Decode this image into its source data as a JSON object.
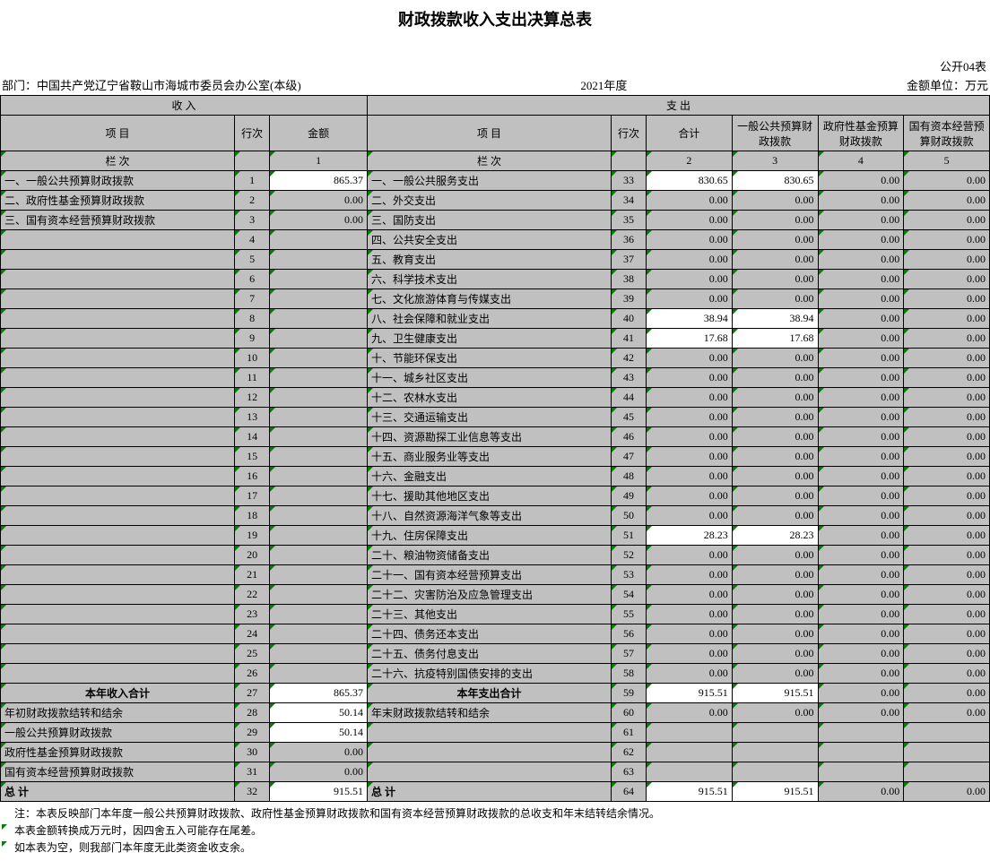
{
  "title": "财政拨款收入支出决算总表",
  "table_code": "公开04表",
  "dept_label": "部门：",
  "dept_name": "中国共产党辽宁省鞍山市海城市委员会办公室(本级)",
  "year": "2021年度",
  "unit": "金额单位：万元",
  "hdr": {
    "income": "收        入",
    "expense": "支    出",
    "item": "项                                 目",
    "item2": "项                                                 目",
    "row": "行次",
    "amount": "金额",
    "total": "合计",
    "c3": "一般公共预算财政拨款",
    "c4": "政府性基金预算财政拨款",
    "c5": "国有资本经营预算财政拨款",
    "col_label_in": "栏                                 次",
    "col_label_out": "栏                                                 次",
    "col1": "1",
    "col2": "2",
    "col3": "3",
    "col4": "4",
    "col5": "5"
  },
  "rows": [
    {
      "in_item": "一、一般公共预算财政拨款",
      "in_row": "1",
      "in_amt": "865.37",
      "in_white": true,
      "out_item": "一、一般公共服务支出",
      "out_row": "33",
      "v2": "830.65",
      "v3": "830.65",
      "v4": "0.00",
      "v5": "0.00",
      "out_white": true
    },
    {
      "in_item": "二、政府性基金预算财政拨款",
      "in_row": "2",
      "in_amt": "0.00",
      "out_item": "二、外交支出",
      "out_row": "34",
      "v2": "0.00",
      "v3": "0.00",
      "v4": "0.00",
      "v5": "0.00"
    },
    {
      "in_item": "三、国有资本经营预算财政拨款",
      "in_row": "3",
      "in_amt": "0.00",
      "out_item": "三、国防支出",
      "out_row": "35",
      "v2": "0.00",
      "v3": "0.00",
      "v4": "0.00",
      "v5": "0.00"
    },
    {
      "in_item": "",
      "in_row": "4",
      "in_amt": "",
      "out_item": "四、公共安全支出",
      "out_row": "36",
      "v2": "0.00",
      "v3": "0.00",
      "v4": "0.00",
      "v5": "0.00"
    },
    {
      "in_item": "",
      "in_row": "5",
      "in_amt": "",
      "out_item": "五、教育支出",
      "out_row": "37",
      "v2": "0.00",
      "v3": "0.00",
      "v4": "0.00",
      "v5": "0.00"
    },
    {
      "in_item": "",
      "in_row": "6",
      "in_amt": "",
      "out_item": "六、科学技术支出",
      "out_row": "38",
      "v2": "0.00",
      "v3": "0.00",
      "v4": "0.00",
      "v5": "0.00"
    },
    {
      "in_item": "",
      "in_row": "7",
      "in_amt": "",
      "out_item": "七、文化旅游体育与传媒支出",
      "out_row": "39",
      "v2": "0.00",
      "v3": "0.00",
      "v4": "0.00",
      "v5": "0.00"
    },
    {
      "in_item": "",
      "in_row": "8",
      "in_amt": "",
      "out_item": "八、社会保障和就业支出",
      "out_row": "40",
      "v2": "38.94",
      "v3": "38.94",
      "v4": "0.00",
      "v5": "0.00",
      "out_white": true
    },
    {
      "in_item": "",
      "in_row": "9",
      "in_amt": "",
      "out_item": "九、卫生健康支出",
      "out_row": "41",
      "v2": "17.68",
      "v3": "17.68",
      "v4": "0.00",
      "v5": "0.00",
      "out_white": true
    },
    {
      "in_item": "",
      "in_row": "10",
      "in_amt": "",
      "out_item": "十、节能环保支出",
      "out_row": "42",
      "v2": "0.00",
      "v3": "0.00",
      "v4": "0.00",
      "v5": "0.00"
    },
    {
      "in_item": "",
      "in_row": "11",
      "in_amt": "",
      "out_item": "十一、城乡社区支出",
      "out_row": "43",
      "v2": "0.00",
      "v3": "0.00",
      "v4": "0.00",
      "v5": "0.00"
    },
    {
      "in_item": "",
      "in_row": "12",
      "in_amt": "",
      "out_item": "十二、农林水支出",
      "out_row": "44",
      "v2": "0.00",
      "v3": "0.00",
      "v4": "0.00",
      "v5": "0.00"
    },
    {
      "in_item": "",
      "in_row": "13",
      "in_amt": "",
      "out_item": "十三、交通运输支出",
      "out_row": "45",
      "v2": "0.00",
      "v3": "0.00",
      "v4": "0.00",
      "v5": "0.00"
    },
    {
      "in_item": "",
      "in_row": "14",
      "in_amt": "",
      "out_item": "十四、资源勘探工业信息等支出",
      "out_row": "46",
      "v2": "0.00",
      "v3": "0.00",
      "v4": "0.00",
      "v5": "0.00"
    },
    {
      "in_item": "",
      "in_row": "15",
      "in_amt": "",
      "out_item": "十五、商业服务业等支出",
      "out_row": "47",
      "v2": "0.00",
      "v3": "0.00",
      "v4": "0.00",
      "v5": "0.00"
    },
    {
      "in_item": "",
      "in_row": "16",
      "in_amt": "",
      "out_item": "十六、金融支出",
      "out_row": "48",
      "v2": "0.00",
      "v3": "0.00",
      "v4": "0.00",
      "v5": "0.00"
    },
    {
      "in_item": "",
      "in_row": "17",
      "in_amt": "",
      "out_item": "十七、援助其他地区支出",
      "out_row": "49",
      "v2": "0.00",
      "v3": "0.00",
      "v4": "0.00",
      "v5": "0.00"
    },
    {
      "in_item": "",
      "in_row": "18",
      "in_amt": "",
      "out_item": "十八、自然资源海洋气象等支出",
      "out_row": "50",
      "v2": "0.00",
      "v3": "0.00",
      "v4": "0.00",
      "v5": "0.00"
    },
    {
      "in_item": "",
      "in_row": "19",
      "in_amt": "",
      "out_item": "十九、住房保障支出",
      "out_row": "51",
      "v2": "28.23",
      "v3": "28.23",
      "v4": "0.00",
      "v5": "0.00",
      "out_white": true
    },
    {
      "in_item": "",
      "in_row": "20",
      "in_amt": "",
      "out_item": "二十、粮油物资储备支出",
      "out_row": "52",
      "v2": "0.00",
      "v3": "0.00",
      "v4": "0.00",
      "v5": "0.00"
    },
    {
      "in_item": "",
      "in_row": "21",
      "in_amt": "",
      "out_item": "二十一、国有资本经营预算支出",
      "out_row": "53",
      "v2": "0.00",
      "v3": "0.00",
      "v4": "0.00",
      "v5": "0.00"
    },
    {
      "in_item": "",
      "in_row": "22",
      "in_amt": "",
      "out_item": "二十二、灾害防治及应急管理支出",
      "out_row": "54",
      "v2": "0.00",
      "v3": "0.00",
      "v4": "0.00",
      "v5": "0.00"
    },
    {
      "in_item": "",
      "in_row": "23",
      "in_amt": "",
      "out_item": "二十三、其他支出",
      "out_row": "55",
      "v2": "0.00",
      "v3": "0.00",
      "v4": "0.00",
      "v5": "0.00"
    },
    {
      "in_item": "",
      "in_row": "24",
      "in_amt": "",
      "out_item": "二十四、债务还本支出",
      "out_row": "56",
      "v2": "0.00",
      "v3": "0.00",
      "v4": "0.00",
      "v5": "0.00"
    },
    {
      "in_item": "",
      "in_row": "25",
      "in_amt": "",
      "out_item": "二十五、债务付息支出",
      "out_row": "57",
      "v2": "0.00",
      "v3": "0.00",
      "v4": "0.00",
      "v5": "0.00"
    },
    {
      "in_item": "",
      "in_row": "26",
      "in_amt": "",
      "out_item": "二十六、抗疫特别国债安排的支出",
      "out_row": "58",
      "v2": "0.00",
      "v3": "0.00",
      "v4": "0.00",
      "v5": "0.00"
    }
  ],
  "sum": {
    "in_total_label": "本年收入合计",
    "in_total_row": "27",
    "in_total_amt": "865.37",
    "out_total_label": "本年支出合计",
    "out_total_row": "59",
    "v2": "915.51",
    "v3": "915.51",
    "v4": "0.00",
    "v5": "0.00"
  },
  "carry": [
    {
      "in_item": "年初财政拨款结转和结余",
      "in_row": "28",
      "in_amt": "50.14",
      "out_item": "年末财政拨款结转和结余",
      "out_row": "60",
      "v2": "0.00",
      "v3": "0.00",
      "v4": "0.00",
      "v5": "0.00"
    },
    {
      "in_item": "  一般公共预算财政拨款",
      "in_row": "29",
      "in_amt": "50.14",
      "out_item": "",
      "out_row": "61",
      "v2": "",
      "v3": "",
      "v4": "",
      "v5": ""
    },
    {
      "in_item": "  政府性基金预算财政拨款",
      "in_row": "30",
      "in_amt": "0.00",
      "out_item": "",
      "out_row": "62",
      "v2": "",
      "v3": "",
      "v4": "",
      "v5": ""
    },
    {
      "in_item": "  国有资本经营预算财政拨款",
      "in_row": "31",
      "in_amt": "0.00",
      "out_item": "",
      "out_row": "63",
      "v2": "",
      "v3": "",
      "v4": "",
      "v5": ""
    }
  ],
  "grand": {
    "in_label": "总                                 计",
    "in_row": "32",
    "in_amt": "915.51",
    "out_label": "总                                                 计",
    "out_row": "64",
    "v2": "915.51",
    "v3": "915.51",
    "v4": "0.00",
    "v5": "0.00"
  },
  "notes": [
    "注：本表反映部门本年度一般公共预算财政拨款、政府性基金预算财政拨款和国有资本经营预算财政拨款的总收支和年末结转结余情况。",
    "本表金额转换成万元时，因四舍五入可能存在尾差。",
    "如本表为空，则我部门本年度无此类资金收支余。"
  ]
}
